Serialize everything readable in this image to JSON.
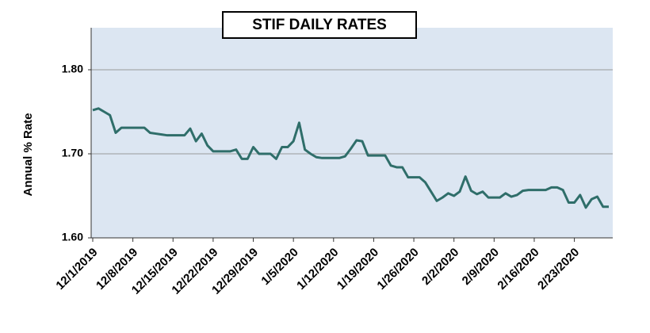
{
  "chart_data": {
    "type": "line",
    "title": "STIF DAILY RATES",
    "y_label": "Annual % Rate",
    "categories": [
      "12/1/2019",
      null,
      null,
      null,
      null,
      null,
      null,
      "12/8/2019",
      null,
      null,
      null,
      null,
      null,
      null,
      "12/15/2019",
      null,
      null,
      null,
      null,
      null,
      null,
      "12/22/2019",
      null,
      null,
      null,
      null,
      null,
      null,
      "12/29/2019",
      null,
      null,
      null,
      null,
      null,
      null,
      "1/5/2020",
      null,
      null,
      null,
      null,
      null,
      null,
      "1/12/2020",
      null,
      null,
      null,
      null,
      null,
      null,
      "1/19/2020",
      null,
      null,
      null,
      null,
      null,
      null,
      "1/26/2020",
      null,
      null,
      null,
      null,
      null,
      null,
      "2/2/2020",
      null,
      null,
      null,
      null,
      null,
      null,
      "2/9/2020",
      null,
      null,
      null,
      null,
      null,
      null,
      "2/16/2020",
      null,
      null,
      null,
      null,
      null,
      null,
      "2/23/2020",
      null,
      null,
      null,
      null,
      null,
      null
    ],
    "series": [
      {
        "name": "STIF",
        "color": "#2f6e6a",
        "values": [
          1.752,
          1.754,
          1.75,
          1.746,
          1.725,
          1.731,
          1.731,
          1.731,
          1.731,
          1.731,
          1.725,
          1.724,
          1.723,
          1.722,
          1.722,
          1.722,
          1.722,
          1.73,
          1.715,
          1.724,
          1.71,
          1.703,
          1.703,
          1.703,
          1.703,
          1.705,
          1.694,
          1.694,
          1.708,
          1.7,
          1.7,
          1.7,
          1.694,
          1.708,
          1.708,
          1.715,
          1.737,
          1.705,
          1.7,
          1.696,
          1.695,
          1.695,
          1.695,
          1.695,
          1.697,
          1.706,
          1.716,
          1.715,
          1.698,
          1.698,
          1.698,
          1.698,
          1.686,
          1.684,
          1.684,
          1.672,
          1.672,
          1.672,
          1.666,
          1.655,
          1.644,
          1.648,
          1.653,
          1.65,
          1.655,
          1.673,
          1.656,
          1.652,
          1.655,
          1.648,
          1.648,
          1.648,
          1.653,
          1.649,
          1.651,
          1.656,
          1.657,
          1.657,
          1.657,
          1.657,
          1.66,
          1.66,
          1.657,
          1.642,
          1.642,
          1.651,
          1.636,
          1.646,
          1.649,
          1.637,
          1.637
        ]
      }
    ],
    "ylim": [
      1.6,
      1.85
    ],
    "yticks": [
      {
        "value": 1.6,
        "label": "1.60"
      },
      {
        "value": 1.7,
        "label": "1.70"
      },
      {
        "value": 1.8,
        "label": "1.80"
      }
    ],
    "grid": true,
    "plot_background": "#dce6f2"
  }
}
